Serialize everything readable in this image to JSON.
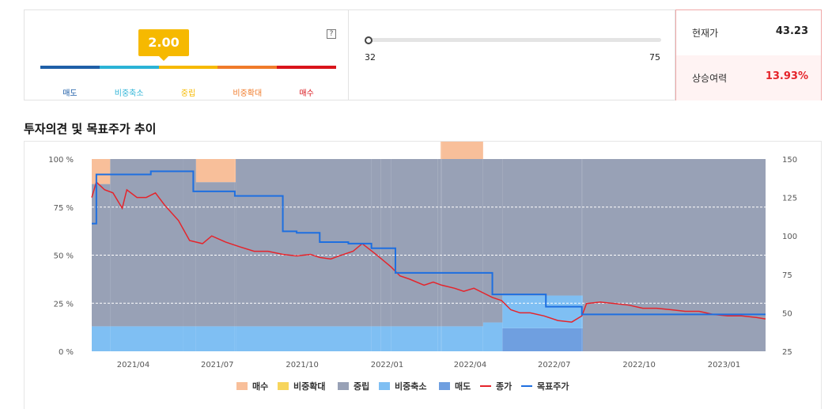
{
  "opinion": {
    "score": "2.00",
    "help": "?",
    "scale": [
      {
        "label": "매도",
        "color": "#1f5fa8"
      },
      {
        "label": "비중축소",
        "color": "#2bb3d6"
      },
      {
        "label": "중립",
        "color": "#f6b900"
      },
      {
        "label": "비중확대",
        "color": "#f07b2a"
      },
      {
        "label": "매수",
        "color": "#d9141b"
      }
    ]
  },
  "target_range": {
    "min": "32",
    "max": "75"
  },
  "price": {
    "current_label": "현재가",
    "current_value": "43.23",
    "upside_label": "상승여력",
    "upside_value": "13.93%"
  },
  "section_title": "투자의견 및 목표주가 추이",
  "chart_data": {
    "type": "area",
    "x_ticks": [
      "2021/04",
      "2021/07",
      "2021/10",
      "2022/01",
      "2022/04",
      "2022/07",
      "2022/10",
      "2023/01"
    ],
    "x_range": [
      "2021-02-15",
      "2023-02-15"
    ],
    "y_left": {
      "ticks": [
        "100 %",
        "75 %",
        "50 %",
        "25 %",
        "0 %"
      ],
      "range": [
        0,
        100
      ]
    },
    "y_right": {
      "ticks": [
        "150",
        "125",
        "100",
        "75",
        "50",
        "25"
      ],
      "range": [
        25,
        150
      ]
    },
    "grid": true,
    "legend_position": "bottom",
    "colors": {
      "매수": "#f8bf9a",
      "비중확대": "#f7d55c",
      "중립": "#98a1b6",
      "비중축소": "#7fbff3",
      "매도": "#6f9fe0",
      "종가": "#e5242b",
      "목표주가": "#1e6fe0"
    },
    "legend": [
      {
        "label": "매수",
        "kind": "box"
      },
      {
        "label": "비중확대",
        "kind": "box"
      },
      {
        "label": "중립",
        "kind": "box"
      },
      {
        "label": "비중축소",
        "kind": "box"
      },
      {
        "label": "매도",
        "kind": "box"
      },
      {
        "label": "종가",
        "kind": "line"
      },
      {
        "label": "목표주가",
        "kind": "line"
      }
    ],
    "opinion_mix": {
      "dates": [
        "2021-02-15",
        "2021-03-07",
        "2021-05-25",
        "2021-06-08",
        "2021-07-20",
        "2021-07-21",
        "2021-12-15",
        "2021-12-25",
        "2022-01-05",
        "2022-02-25",
        "2022-02-28",
        "2022-03-01",
        "2022-04-15",
        "2022-05-06",
        "2022-07-31",
        "2022-08-01",
        "2023-02-15"
      ],
      "매도": [
        0,
        0,
        0,
        0,
        0,
        0,
        0,
        0,
        0,
        0,
        0,
        0,
        0,
        12,
        12,
        0,
        0
      ],
      "비중축소": [
        13,
        13,
        13,
        13,
        13,
        13,
        13,
        13,
        13,
        13,
        13,
        13,
        15,
        17,
        17,
        0,
        0
      ],
      "중립": [
        74,
        87,
        87,
        75,
        75,
        87,
        87,
        87,
        87,
        87,
        87,
        87,
        85,
        71,
        71,
        100,
        100
      ],
      "매수": [
        13,
        0,
        0,
        12,
        12,
        0,
        0,
        0,
        0,
        0,
        13,
        13,
        0,
        0,
        0,
        0,
        0
      ],
      "note": "each row is the opinion share (%) from that date until the next"
    },
    "target_price": {
      "dates": [
        "2021-02-15",
        "2021-02-20",
        "2021-04-15",
        "2021-04-20",
        "2021-06-05",
        "2021-07-20",
        "2021-09-10",
        "2021-09-25",
        "2021-10-20",
        "2021-11-20",
        "2021-12-15",
        "2022-01-10",
        "2022-01-10",
        "2022-04-25",
        "2022-04-25",
        "2022-06-15",
        "2022-06-22",
        "2022-07-01",
        "2022-07-31",
        "2023-02-15"
      ],
      "values": [
        108,
        140,
        140,
        142,
        129,
        126,
        103,
        102,
        96,
        95,
        92,
        89,
        76,
        76,
        62,
        62,
        54,
        54,
        49,
        49
      ]
    },
    "close": {
      "dates": [
        "2021-02-15",
        "2021-02-20",
        "2021-03-01",
        "2021-03-10",
        "2021-03-20",
        "2021-03-25",
        "2021-04-05",
        "2021-04-15",
        "2021-04-25",
        "2021-05-05",
        "2021-05-20",
        "2021-06-01",
        "2021-06-15",
        "2021-06-25",
        "2021-07-10",
        "2021-07-25",
        "2021-08-10",
        "2021-08-25",
        "2021-09-10",
        "2021-09-25",
        "2021-10-10",
        "2021-10-20",
        "2021-11-01",
        "2021-11-10",
        "2021-11-25",
        "2021-12-05",
        "2021-12-20",
        "2022-01-05",
        "2022-01-15",
        "2022-01-25",
        "2022-02-10",
        "2022-02-20",
        "2022-03-01",
        "2022-03-15",
        "2022-03-25",
        "2022-04-05",
        "2022-04-15",
        "2022-04-25",
        "2022-05-05",
        "2022-05-15",
        "2022-05-25",
        "2022-06-05",
        "2022-06-20",
        "2022-07-05",
        "2022-07-20",
        "2022-07-31",
        "2022-08-05",
        "2022-08-20",
        "2022-09-05",
        "2022-09-20",
        "2022-10-05",
        "2022-10-20",
        "2022-11-05",
        "2022-11-20",
        "2022-12-05",
        "2022-12-20",
        "2023-01-05",
        "2023-01-20",
        "2023-02-05",
        "2023-02-15"
      ],
      "values": [
        125,
        135,
        130,
        128,
        118,
        130,
        125,
        125,
        128,
        120,
        110,
        97,
        95,
        100,
        96,
        93,
        90,
        90,
        88,
        87,
        88,
        86,
        85,
        87,
        90,
        95,
        88,
        80,
        74,
        72,
        68,
        70,
        68,
        66,
        64,
        66,
        63,
        60,
        58,
        52,
        50,
        50,
        48,
        45,
        44,
        48,
        56,
        57,
        56,
        55,
        53,
        53,
        52,
        51,
        51,
        49,
        48,
        48,
        47,
        46
      ]
    }
  }
}
